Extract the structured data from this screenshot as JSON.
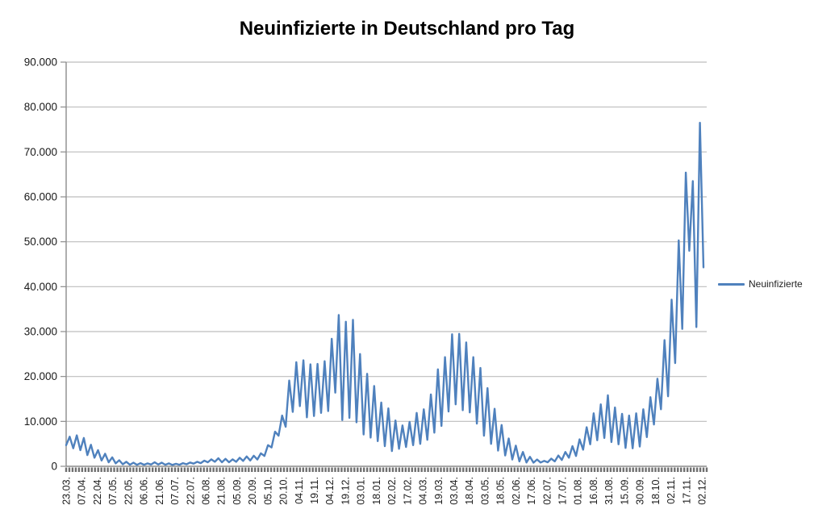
{
  "title": "Neuinfizierte in Deutschland pro Tag",
  "legend": {
    "label": "Neuinfizierte"
  },
  "colors": {
    "line": "#4F81BD",
    "grid": "#BDBDBD",
    "axis": "#8C8C8C",
    "tick_band": "#6F6F6F",
    "text": "#1A1A1A"
  },
  "chart_data": {
    "type": "line",
    "title": "Neuinfizierte in Deutschland pro Tag",
    "xlabel": "",
    "ylabel": "",
    "ylim": [
      0,
      90000
    ],
    "grid": "horizontal-major",
    "legend_position": "right",
    "y_tick_labels": [
      "0",
      "10.000",
      "20.000",
      "30.000",
      "40.000",
      "50.000",
      "60.000",
      "70.000",
      "80.000",
      "90.000"
    ],
    "x_tick_labels": [
      "23.03.",
      "07.04.",
      "22.04.",
      "07.05.",
      "22.05.",
      "06.06.",
      "21.06.",
      "07.07.",
      "22.07.",
      "06.08.",
      "21.08.",
      "05.09.",
      "20.09.",
      "05.10.",
      "20.10.",
      "04.11.",
      "19.11.",
      "04.12.",
      "19.12.",
      "03.01.",
      "18.01.",
      "02.02.",
      "17.02.",
      "04.03.",
      "19.03.",
      "03.04.",
      "18.04.",
      "03.05.",
      "18.05.",
      "02.06.",
      "17.06.",
      "02.07.",
      "17.07.",
      "01.08.",
      "16.08.",
      "31.08.",
      "15.09.",
      "30.09.",
      "18.10.",
      "02.11.",
      "17.11.",
      "02.12."
    ],
    "series": [
      {
        "name": "Neuinfizierte",
        "color": "#4F81BD",
        "sampling": "daily reported new infections 23.03.2020 - 02.12.2021, estimated as alternating weekly minimum / weekly maximum values",
        "values": [
          4700,
          6600,
          4000,
          6900,
          3600,
          6300,
          2500,
          4800,
          1900,
          3600,
          1300,
          2800,
          900,
          2000,
          650,
          1350,
          450,
          1000,
          350,
          800,
          320,
          700,
          350,
          650,
          400,
          900,
          400,
          800,
          350,
          650,
          300,
          550,
          350,
          700,
          450,
          850,
          600,
          1000,
          700,
          1250,
          900,
          1550,
          1000,
          1800,
          900,
          1650,
          900,
          1550,
          1000,
          1900,
          1200,
          2200,
          1300,
          2350,
          1500,
          2900,
          2300,
          4700,
          4200,
          7700,
          6800,
          11300,
          8800,
          19100,
          12100,
          23200,
          13400,
          23600,
          10900,
          22700,
          11200,
          22800,
          11900,
          23400,
          12300,
          28400,
          16400,
          33700,
          10300,
          32200,
          10800,
          32600,
          9800,
          25000,
          7100,
          20600,
          6400,
          17900,
          5600,
          14200,
          4500,
          12900,
          3400,
          10200,
          3900,
          9100,
          4300,
          9900,
          4700,
          11900,
          5000,
          12700,
          5900,
          16000,
          7500,
          21600,
          9000,
          24300,
          12200,
          29400,
          13800,
          29500,
          12500,
          27600,
          12000,
          24300,
          9500,
          21900,
          6800,
          17400,
          5000,
          12800,
          3500,
          9200,
          2400,
          6200,
          1500,
          4600,
          1100,
          3200,
          850,
          2100,
          800,
          1500,
          850,
          1200,
          900,
          1700,
          1100,
          2400,
          1400,
          3200,
          1900,
          4500,
          2300,
          6000,
          3700,
          8700,
          4900,
          11800,
          5800,
          13800,
          6300,
          15800,
          5400,
          13100,
          4900,
          11700,
          4100,
          11300,
          4000,
          11800,
          4400,
          12700,
          6500,
          15400,
          9300,
          19500,
          12700,
          28100,
          15600,
          37100,
          23000,
          50300,
          30600,
          65400,
          48000,
          63500,
          31000,
          76500,
          44300
        ]
      }
    ]
  }
}
